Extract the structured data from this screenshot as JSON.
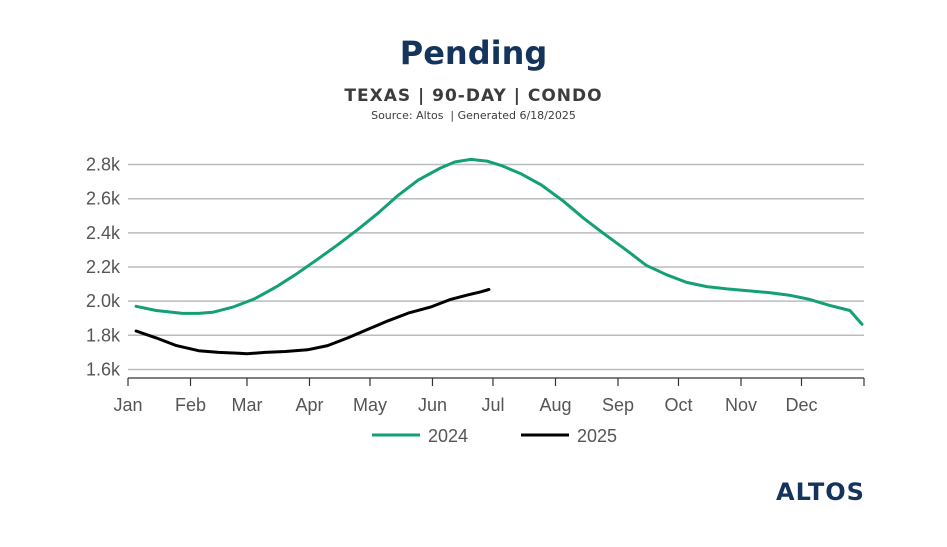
{
  "header": {
    "title": "Pending",
    "subtitle": "TEXAS | 90-DAY | CONDO",
    "source": "Source: Altos  | Generated 6/18/2025"
  },
  "logo": {
    "text": "ALTOS"
  },
  "colors": {
    "series_2024": "#13a077",
    "series_2025": "#000000",
    "grid": "#bbbbbb",
    "axis": "#333333",
    "title": "#14345c"
  },
  "chart_data": {
    "type": "line",
    "title": "Pending",
    "subtitle": "TEXAS | 90-DAY | CONDO",
    "xlabel": "",
    "ylabel": "",
    "x_ticks": [
      "Jan",
      "Feb",
      "Mar",
      "Apr",
      "May",
      "Jun",
      "Jul",
      "Aug",
      "Sep",
      "Oct",
      "Nov",
      "Dec"
    ],
    "y_ticks": [
      "1.6k",
      "1.8k",
      "2.0k",
      "2.2k",
      "2.4k",
      "2.6k",
      "2.8k"
    ],
    "ylim": [
      1550,
      2850
    ],
    "xlim": [
      "2025-01-01",
      "2026-01-01"
    ],
    "grid": true,
    "legend_position": "bottom",
    "series": [
      {
        "name": "2024",
        "points": [
          [
            "01-05",
            1970
          ],
          [
            "01-15",
            1945
          ],
          [
            "01-28",
            1928
          ],
          [
            "02-05",
            1928
          ],
          [
            "02-12",
            1935
          ],
          [
            "02-22",
            1965
          ],
          [
            "03-05",
            2015
          ],
          [
            "03-15",
            2080
          ],
          [
            "03-25",
            2155
          ],
          [
            "04-05",
            2245
          ],
          [
            "04-15",
            2330
          ],
          [
            "04-25",
            2420
          ],
          [
            "05-05",
            2515
          ],
          [
            "05-15",
            2620
          ],
          [
            "05-25",
            2710
          ],
          [
            "06-05",
            2780
          ],
          [
            "06-12",
            2815
          ],
          [
            "06-20",
            2830
          ],
          [
            "06-28",
            2820
          ],
          [
            "07-05",
            2795
          ],
          [
            "07-15",
            2745
          ],
          [
            "07-25",
            2680
          ],
          [
            "08-05",
            2585
          ],
          [
            "08-15",
            2485
          ],
          [
            "08-25",
            2395
          ],
          [
            "09-05",
            2300
          ],
          [
            "09-15",
            2210
          ],
          [
            "09-25",
            2155
          ],
          [
            "10-05",
            2110
          ],
          [
            "10-15",
            2085
          ],
          [
            "10-25",
            2072
          ],
          [
            "11-05",
            2060
          ],
          [
            "11-15",
            2050
          ],
          [
            "11-25",
            2035
          ],
          [
            "12-05",
            2010
          ],
          [
            "12-15",
            1975
          ],
          [
            "12-25",
            1945
          ],
          [
            "12-31",
            1865
          ]
        ]
      },
      {
        "name": "2025",
        "points": [
          [
            "01-05",
            1825
          ],
          [
            "01-15",
            1785
          ],
          [
            "01-25",
            1740
          ],
          [
            "02-05",
            1710
          ],
          [
            "02-15",
            1700
          ],
          [
            "02-25",
            1695
          ],
          [
            "03-01",
            1692
          ],
          [
            "03-10",
            1700
          ],
          [
            "03-20",
            1705
          ],
          [
            "03-31",
            1715
          ],
          [
            "04-10",
            1740
          ],
          [
            "04-20",
            1785
          ],
          [
            "04-30",
            1835
          ],
          [
            "05-10",
            1885
          ],
          [
            "05-20",
            1930
          ],
          [
            "05-31",
            1965
          ],
          [
            "06-10",
            2010
          ],
          [
            "06-18",
            2035
          ],
          [
            "06-25",
            2055
          ],
          [
            "06-29",
            2068
          ]
        ]
      }
    ]
  }
}
